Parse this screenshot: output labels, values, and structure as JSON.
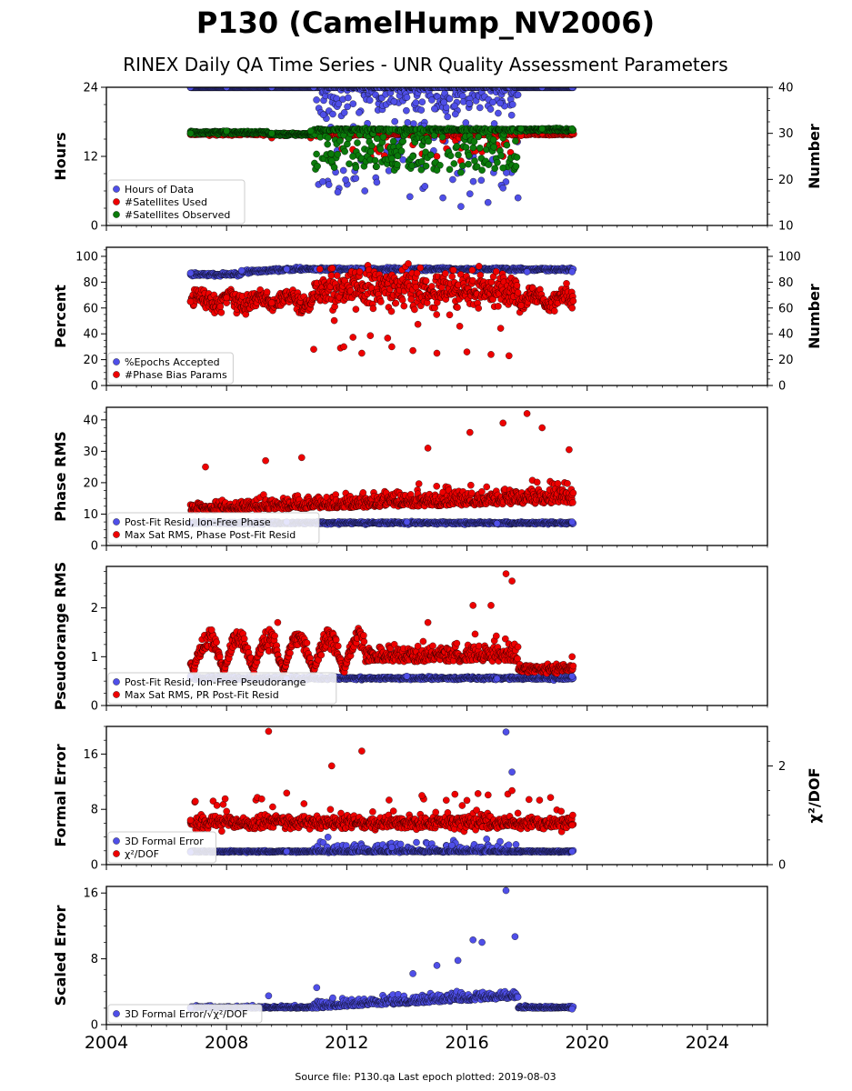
{
  "figure": {
    "title": "P130 (CamelHump_NV2006)",
    "subtitle": "RINEX Daily QA Time Series - UNR Quality Assessment Parameters",
    "footer": "Source file: P130.qa Last epoch plotted: 2019-08-03",
    "x_ticks": [
      "2004",
      "2008",
      "2012",
      "2016",
      "2020",
      "2024"
    ]
  },
  "chart_data": [
    {
      "type": "scatter",
      "ylabel": "Hours",
      "ylabel_right": "Number",
      "xlim": [
        2004,
        2026
      ],
      "ylim": [
        0,
        24
      ],
      "ylim_right": [
        10,
        40
      ],
      "yticks": [
        0,
        12,
        24
      ],
      "yticks_right": [
        10,
        20,
        30,
        40
      ],
      "legend": "bottom-left",
      "series": [
        {
          "name": "Hours of Data",
          "color": "#4f4fe8",
          "axis": "left",
          "pattern": "hours",
          "x": [
            2006.8,
            2008.0,
            2009.5,
            2010.9,
            2011.2,
            2011.7,
            2012.3,
            2012.6,
            2013.0,
            2013.4,
            2014.1,
            2014.6,
            2015.2,
            2015.8,
            2016.1,
            2016.7,
            2017.2,
            2017.7,
            2018.5,
            2019.5
          ],
          "y": [
            24,
            24,
            24,
            24,
            7.6,
            5.8,
            8.2,
            6.0,
            7.5,
            9.5,
            5.0,
            6.8,
            4.8,
            3.3,
            5.5,
            4.0,
            6.5,
            4.8,
            24,
            24
          ]
        },
        {
          "name": "#Satellites Used",
          "color": "#ee0000",
          "axis": "right",
          "pattern": "used",
          "x": [
            2006.8,
            2008.0,
            2009.5,
            2010.8,
            2011.5,
            2012.2,
            2012.8,
            2013.5,
            2014.2,
            2015.0,
            2015.8,
            2016.5,
            2017.2,
            2017.8,
            2018.5,
            2019.5
          ],
          "y": [
            30,
            30,
            29,
            29,
            25,
            26.5,
            25,
            26,
            27.5,
            25,
            24,
            26,
            25,
            29.5,
            30,
            30
          ]
        },
        {
          "name": "#Satellites Observed",
          "color": "#0a7a0a",
          "axis": "right",
          "pattern": "obs",
          "x": [
            2006.8,
            2008.0,
            2009.5,
            2010.8,
            2011.5,
            2012.2,
            2012.8,
            2013.5,
            2014.2,
            2015.0,
            2015.8,
            2016.5,
            2017.2,
            2017.8,
            2018.5,
            2019.5
          ],
          "y": [
            30,
            30.5,
            30,
            30.5,
            24,
            25,
            26,
            24.5,
            25,
            22,
            21.5,
            22,
            22.5,
            31,
            31,
            31
          ]
        }
      ]
    },
    {
      "type": "scatter",
      "ylabel": "Percent",
      "ylabel_right": "Number",
      "xlim": [
        2004,
        2026
      ],
      "ylim": [
        0,
        107
      ],
      "ylim_right": [
        0,
        107
      ],
      "yticks": [
        0,
        20,
        40,
        60,
        80,
        100
      ],
      "yticks_right": [
        0,
        20,
        40,
        60,
        80,
        100
      ],
      "legend": "bottom-left",
      "series": [
        {
          "name": "%Epochs Accepted",
          "color": "#4f4fe8",
          "axis": "left",
          "pattern": "epochs",
          "x": [
            2006.8,
            2008.5,
            2010.0,
            2011.0,
            2012.5,
            2014.0,
            2015.5,
            2017.0,
            2018.0,
            2019.5
          ],
          "y": [
            87,
            89,
            90,
            90,
            90,
            89,
            89,
            89,
            88,
            88
          ]
        },
        {
          "name": "#Phase Bias Params",
          "color": "#ee0000",
          "axis": "right",
          "pattern": "bias",
          "x": [
            2006.8,
            2008.0,
            2009.5,
            2010.9,
            2011.9,
            2012.5,
            2013.5,
            2014.2,
            2015.0,
            2016.0,
            2016.8,
            2017.4,
            2017.8,
            2019.5
          ],
          "y": [
            65,
            68,
            64,
            28,
            30,
            25,
            30,
            27,
            25,
            26,
            24,
            23,
            62,
            60
          ]
        }
      ]
    },
    {
      "type": "scatter",
      "ylabel": "Phase RMS",
      "xlim": [
        2004,
        2026
      ],
      "ylim": [
        0,
        44
      ],
      "yticks": [
        0,
        10,
        20,
        30,
        40
      ],
      "legend": "bottom-left",
      "series": [
        {
          "name": "Post-Fit Resid, Ion-Free Phase",
          "color": "#4f4fe8",
          "pattern": "phase_pf",
          "x": [
            2006.8,
            2010.0,
            2014.0,
            2017.0,
            2019.5
          ],
          "y": [
            7,
            7.5,
            7.5,
            7,
            7.5
          ]
        },
        {
          "name": "Max Sat RMS, Phase Post-Fit Resid",
          "color": "#ee0000",
          "pattern": "phase_max",
          "x": [
            2007.3,
            2009.3,
            2010.5,
            2014.7,
            2016.1,
            2017.2,
            2018.0,
            2018.5,
            2019.4
          ],
          "y": [
            25,
            27,
            28,
            31,
            36,
            39,
            42,
            37.5,
            30.5
          ]
        }
      ]
    },
    {
      "type": "scatter",
      "ylabel": "Pseudorange RMS",
      "xlim": [
        2004,
        2026
      ],
      "ylim": [
        0,
        2.85
      ],
      "yticks": [
        0,
        1,
        2
      ],
      "legend": "bottom-left",
      "series": [
        {
          "name": "Post-Fit Resid, Ion-Free Pseudorange",
          "color": "#4f4fe8",
          "pattern": "pr_pf",
          "x": [
            2006.8,
            2010.0,
            2014.0,
            2017.0,
            2019.5
          ],
          "y": [
            0.6,
            0.55,
            0.6,
            0.55,
            0.6
          ]
        },
        {
          "name": "Max Sat RMS, PR Post-Fit Resid",
          "color": "#ee0000",
          "pattern": "pr_max",
          "x": [
            2007.5,
            2009.7,
            2014.7,
            2016.2,
            2016.8,
            2017.3,
            2017.5,
            2019.5
          ],
          "y": [
            1.55,
            1.7,
            1.7,
            2.05,
            2.05,
            2.7,
            2.55,
            1.0
          ]
        }
      ]
    },
    {
      "type": "scatter",
      "ylabel": "Formal Error",
      "ylabel_right": "χ²/DOF",
      "xlim": [
        2004,
        2026
      ],
      "ylim": [
        0,
        20
      ],
      "ylim_right": [
        0,
        2.8
      ],
      "yticks": [
        0,
        8,
        16
      ],
      "yticks_right": [
        0,
        2
      ],
      "legend": "bottom-left",
      "series": [
        {
          "name": "3D Formal Error",
          "color": "#4f4fe8",
          "axis": "left",
          "pattern": "fe",
          "x": [
            2006.8,
            2010.0,
            2013.5,
            2015.5,
            2017.3,
            2017.5,
            2019.5
          ],
          "y": [
            1.8,
            1.9,
            2.5,
            2.8,
            19.2,
            13.4,
            1.9
          ]
        },
        {
          "name": "χ²/DOF",
          "color": "#ee0000",
          "axis": "right",
          "pattern": "chi",
          "x": [
            2006.8,
            2008.0,
            2009.4,
            2010.0,
            2011.5,
            2012.5,
            2014.5,
            2016.0,
            2017.5,
            2019.5
          ],
          "y": [
            0.9,
            1.08,
            2.7,
            1.45,
            2.0,
            2.3,
            1.4,
            1.3,
            1.5,
            0.8
          ]
        }
      ]
    },
    {
      "type": "scatter",
      "ylabel": "Scaled Error",
      "xlim": [
        2004,
        2026
      ],
      "ylim": [
        0,
        16.8
      ],
      "yticks": [
        0,
        8,
        16
      ],
      "legend": "bottom-left",
      "series": [
        {
          "name": "3D Formal Error/√χ²/DOF",
          "color": "#4f4fe8",
          "pattern": "scaled",
          "x": [
            2006.8,
            2009.4,
            2011.0,
            2014.2,
            2015.0,
            2015.7,
            2016.2,
            2016.5,
            2017.3,
            2017.6,
            2019.5
          ],
          "y": [
            2.0,
            3.5,
            4.5,
            6.2,
            7.2,
            7.8,
            10.3,
            10.0,
            16.3,
            10.7,
            1.9
          ]
        }
      ]
    }
  ]
}
